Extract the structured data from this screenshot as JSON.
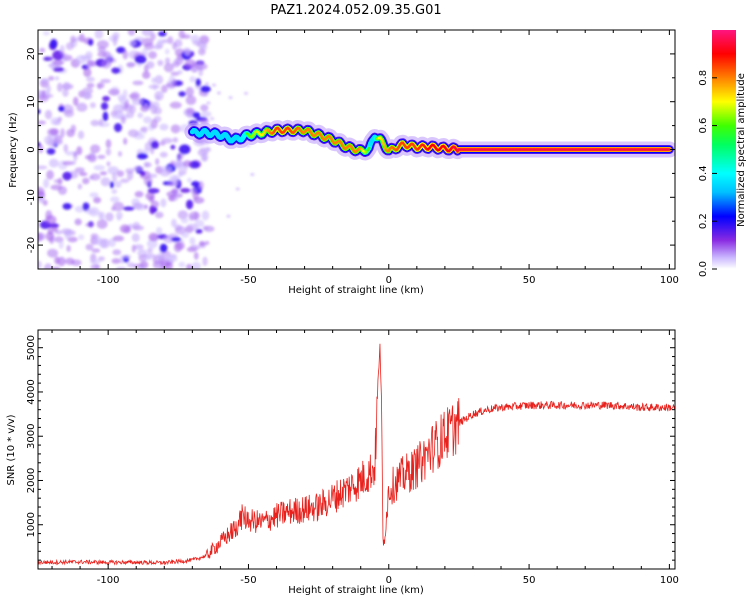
{
  "title": "PAZ1.2024.052.09.35.G01",
  "chart_data": [
    {
      "type": "heatmap",
      "xlabel": "Height of straight line (km)",
      "ylabel": "Frequency (Hz)",
      "xlim": [
        -125,
        102
      ],
      "ylim": [
        -25,
        25
      ],
      "xticks": [
        -100,
        -50,
        0,
        50,
        100
      ],
      "yticks": [
        -20,
        -10,
        0,
        10,
        20
      ],
      "colorbar": {
        "label": "Normalized spectral amplitude",
        "ticks": [
          0.0,
          0.2,
          0.4,
          0.6,
          0.8
        ],
        "range": [
          0,
          1
        ],
        "colormap": [
          "#ffffff",
          "#c8b4ff",
          "#8a2be2",
          "#0000ff",
          "#00bfff",
          "#00ffff",
          "#00ff80",
          "#40ff00",
          "#ffff00",
          "#ff8000",
          "#ff0000",
          "#ff1493"
        ]
      },
      "ridge": {
        "x": [
          -70,
          -65,
          -60,
          -55,
          -50,
          -45,
          -40,
          -35,
          -30,
          -25,
          -20,
          -15,
          -10,
          -7,
          -5,
          -3,
          0,
          5,
          10,
          15,
          20,
          25,
          30,
          40,
          50,
          60,
          70,
          80,
          90,
          100
        ],
        "y": [
          3.5,
          3.5,
          3.0,
          2.0,
          3.0,
          3.5,
          4.0,
          4.0,
          4.0,
          3.0,
          2.0,
          0.5,
          -0.3,
          0.0,
          3.0,
          2.0,
          -0.3,
          1.0,
          0.5,
          0.5,
          0.2,
          0.0,
          0.0,
          0.0,
          0.0,
          0.0,
          0.0,
          0.0,
          0.0,
          0.0
        ],
        "amplitude": [
          0.3,
          0.5,
          0.5,
          0.5,
          0.6,
          0.7,
          0.85,
          0.85,
          0.8,
          0.8,
          0.8,
          0.8,
          0.8,
          0.6,
          0.5,
          0.7,
          0.8,
          0.85,
          0.85,
          0.9,
          0.9,
          0.95,
          0.95,
          0.95,
          0.95,
          0.95,
          0.95,
          0.95,
          0.95,
          0.95
        ]
      },
      "noise_region_x": [
        -125,
        -68
      ],
      "grid": false
    },
    {
      "type": "line",
      "xlabel": "Height of straight line (km)",
      "ylabel": "SNR (10 * v/v)",
      "xlim": [
        -125,
        102
      ],
      "ylim": [
        0,
        5400
      ],
      "xticks": [
        -100,
        -50,
        0,
        50,
        100
      ],
      "yticks": [
        1000,
        2000,
        3000,
        4000,
        5000
      ],
      "series": [
        {
          "color": "#e8211c",
          "x": [
            -125,
            -110,
            -100,
            -90,
            -80,
            -70,
            -65,
            -60,
            -55,
            -52,
            -50,
            -45,
            -40,
            -35,
            -30,
            -25,
            -20,
            -15,
            -10,
            -5,
            -3,
            -2,
            0,
            5,
            10,
            15,
            20,
            25,
            30,
            35,
            40,
            50,
            60,
            70,
            80,
            90,
            100,
            102
          ],
          "y": [
            150,
            160,
            150,
            150,
            140,
            200,
            300,
            600,
            900,
            1200,
            1100,
            1050,
            1200,
            1300,
            1350,
            1400,
            1600,
            1800,
            2000,
            2300,
            5300,
            400,
            1800,
            2100,
            2300,
            2700,
            3000,
            3300,
            3500,
            3600,
            3650,
            3700,
            3700,
            3700,
            3700,
            3650,
            3650,
            3650
          ]
        }
      ],
      "grid": false
    }
  ]
}
